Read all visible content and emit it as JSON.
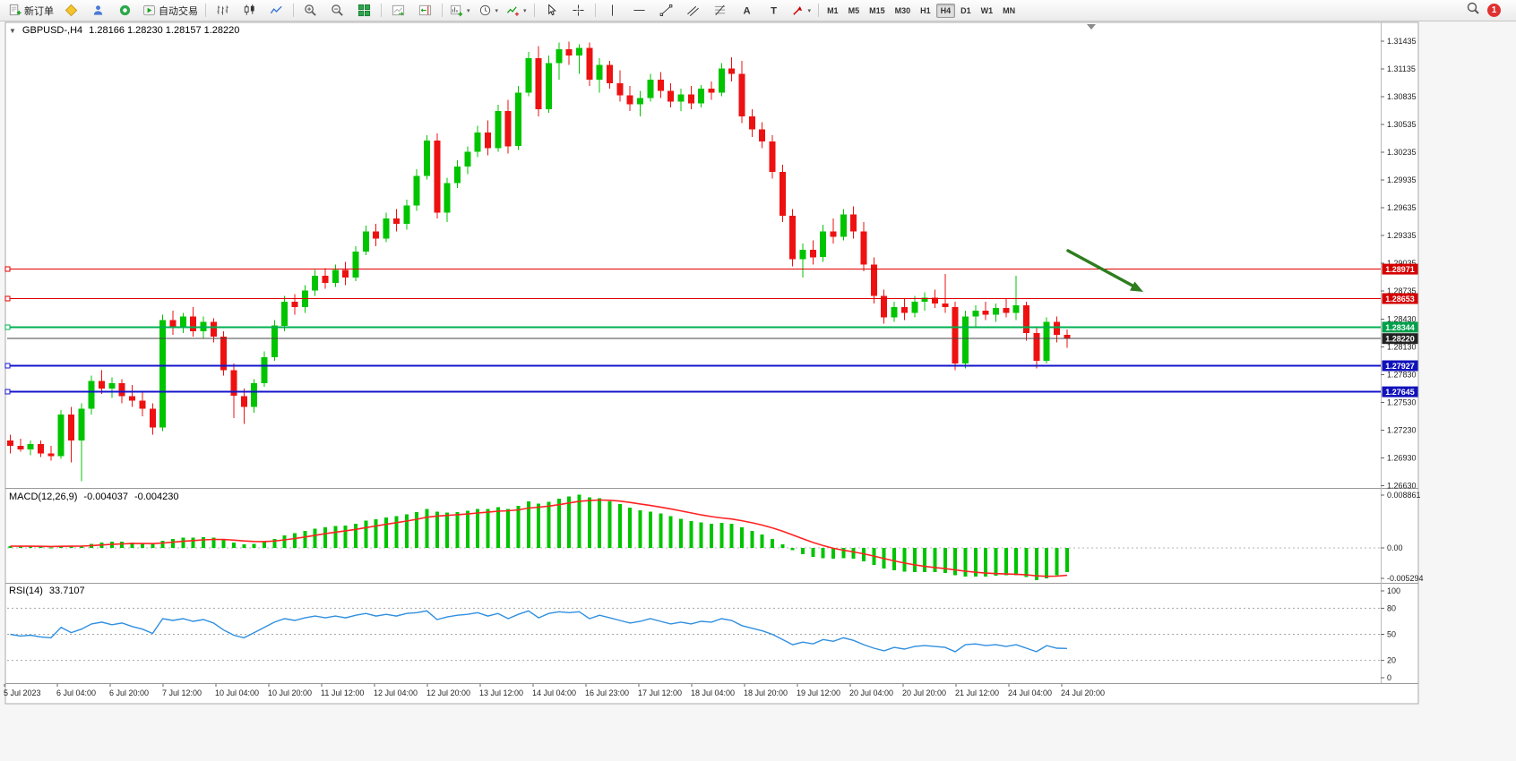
{
  "toolbar": {
    "new_order_label": "新订单",
    "autotrading_label": "自动交易",
    "timeframes": [
      "M1",
      "M5",
      "M15",
      "M30",
      "H1",
      "H4",
      "D1",
      "W1",
      "MN"
    ],
    "active_timeframe": "H4",
    "notification_count": "1"
  },
  "chart_header": {
    "toggle_glyph": "▼",
    "symbol": "GBPUSD-,H4",
    "ohlc": "1.28166 1.28230 1.28157 1.28220"
  },
  "colors": {
    "candle_up": "#00C400",
    "candle_down": "#EE1111",
    "macd_histogram": "#00C400",
    "macd_signal": "#FF2222",
    "rsi_line": "#2F8FE0",
    "arrow": "#2E7D1F",
    "current_price_line": "#444444"
  },
  "chart_data": {
    "type": "candlestick",
    "symbol": "GBPUSD",
    "timeframe": "H4",
    "ohlc_display": {
      "open": "1.28166",
      "high": "1.28230",
      "low": "1.28157",
      "close": "1.28220"
    },
    "price_axis": [
      "1.31435",
      "1.31135",
      "1.30835",
      "1.30535",
      "1.30235",
      "1.29935",
      "1.29635",
      "1.29335",
      "1.29035",
      "1.28735",
      "1.28430",
      "1.28130",
      "1.27830",
      "1.27530",
      "1.27230",
      "1.26930",
      "1.26630"
    ],
    "time_axis": [
      "5 Jul 2023",
      "6 Jul 04:00",
      "6 Jul 20:00",
      "7 Jul 12:00",
      "10 Jul 04:00",
      "10 Jul 20:00",
      "11 Jul 12:00",
      "12 Jul 04:00",
      "12 Jul 20:00",
      "13 Jul 12:00",
      "14 Jul 04:00",
      "16 Jul 23:00",
      "17 Jul 12:00",
      "18 Jul 04:00",
      "18 Jul 20:00",
      "19 Jul 12:00",
      "20 Jul 04:00",
      "20 Jul 20:00",
      "21 Jul 12:00",
      "24 Jul 04:00",
      "24 Jul 20:00"
    ],
    "hlines": [
      {
        "price": 1.28971,
        "label": "1.28971",
        "color": "#E00000",
        "badge_bg": "#D40000",
        "width": 1.2,
        "role": "resistance"
      },
      {
        "price": 1.28653,
        "label": "1.28653",
        "color": "#E00000",
        "badge_bg": "#D40000",
        "width": 1.2,
        "role": "resistance"
      },
      {
        "price": 1.28344,
        "label": "1.28344",
        "color": "#00B050",
        "badge_bg": "#00A04A",
        "width": 2,
        "role": "support"
      },
      {
        "price": 1.27927,
        "label": "1.27927",
        "color": "#1414CC",
        "badge_bg": "#1111BB",
        "width": 2,
        "role": "support"
      },
      {
        "price": 1.27645,
        "label": "1.27645",
        "color": "#1414CC",
        "badge_bg": "#1111BB",
        "width": 2,
        "role": "support"
      }
    ],
    "current_price": {
      "price": 1.2822,
      "label": "1.28220",
      "badge_bg": "#222222"
    },
    "arrow_annotation": {
      "color": "#2E7D1F",
      "direction": "down-right",
      "points_to_price_zone": "1.2865"
    },
    "candles": [
      [
        1.2712,
        1.2718,
        1.2698,
        1.2706
      ],
      [
        1.2706,
        1.2714,
        1.27,
        1.2702
      ],
      [
        1.2702,
        1.2712,
        1.2696,
        1.2708
      ],
      [
        1.2708,
        1.2712,
        1.2694,
        1.2698
      ],
      [
        1.2698,
        1.2706,
        1.269,
        1.2695
      ],
      [
        1.2695,
        1.2745,
        1.2692,
        1.274
      ],
      [
        1.274,
        1.2748,
        1.2688,
        1.2712
      ],
      [
        1.2712,
        1.2752,
        1.2668,
        1.2746
      ],
      [
        1.2746,
        1.2782,
        1.274,
        1.2776
      ],
      [
        1.2776,
        1.2788,
        1.2762,
        1.2768
      ],
      [
        1.2768,
        1.278,
        1.2758,
        1.2774
      ],
      [
        1.2774,
        1.2778,
        1.2752,
        1.276
      ],
      [
        1.276,
        1.2772,
        1.2748,
        1.2755
      ],
      [
        1.2755,
        1.2764,
        1.2738,
        1.2746
      ],
      [
        1.2746,
        1.2752,
        1.2718,
        1.2726
      ],
      [
        1.2726,
        1.2848,
        1.2722,
        1.2842
      ],
      [
        1.2842,
        1.2852,
        1.2826,
        1.2834
      ],
      [
        1.2834,
        1.285,
        1.2828,
        1.2846
      ],
      [
        1.2846,
        1.2856,
        1.2824,
        1.283
      ],
      [
        1.283,
        1.2846,
        1.2822,
        1.284
      ],
      [
        1.284,
        1.2844,
        1.2818,
        1.2824
      ],
      [
        1.2824,
        1.283,
        1.2782,
        1.2788
      ],
      [
        1.2788,
        1.2795,
        1.2736,
        1.276
      ],
      [
        1.276,
        1.2768,
        1.273,
        1.2748
      ],
      [
        1.2748,
        1.2778,
        1.2742,
        1.2774
      ],
      [
        1.2774,
        1.2808,
        1.277,
        1.2802
      ],
      [
        1.2802,
        1.2842,
        1.2798,
        1.2836
      ],
      [
        1.2836,
        1.2868,
        1.283,
        1.2862
      ],
      [
        1.2862,
        1.287,
        1.2848,
        1.2856
      ],
      [
        1.2856,
        1.288,
        1.285,
        1.2874
      ],
      [
        1.2874,
        1.2896,
        1.2868,
        1.289
      ],
      [
        1.289,
        1.2898,
        1.2876,
        1.2882
      ],
      [
        1.2882,
        1.2902,
        1.2878,
        1.2896
      ],
      [
        1.2896,
        1.2905,
        1.288,
        1.2888
      ],
      [
        1.2888,
        1.2922,
        1.2884,
        1.2916
      ],
      [
        1.2916,
        1.2944,
        1.2912,
        1.2938
      ],
      [
        1.2938,
        1.2946,
        1.2922,
        1.293
      ],
      [
        1.293,
        1.2958,
        1.2926,
        1.2952
      ],
      [
        1.2952,
        1.2962,
        1.2938,
        1.2946
      ],
      [
        1.2946,
        1.2972,
        1.294,
        1.2966
      ],
      [
        1.2966,
        1.3005,
        1.296,
        1.2998
      ],
      [
        1.2998,
        1.3042,
        1.2994,
        1.3036
      ],
      [
        1.3036,
        1.3044,
        1.2952,
        1.2958
      ],
      [
        1.2958,
        1.2996,
        1.2948,
        1.299
      ],
      [
        1.299,
        1.3015,
        1.2985,
        1.3008
      ],
      [
        1.3008,
        1.303,
        1.3,
        1.3024
      ],
      [
        1.3024,
        1.3052,
        1.3018,
        1.3045
      ],
      [
        1.3045,
        1.3058,
        1.302,
        1.3028
      ],
      [
        1.3028,
        1.3075,
        1.3024,
        1.3068
      ],
      [
        1.3068,
        1.308,
        1.3022,
        1.303
      ],
      [
        1.303,
        1.3095,
        1.3026,
        1.3088
      ],
      [
        1.3088,
        1.3132,
        1.3084,
        1.3125
      ],
      [
        1.3125,
        1.3138,
        1.3062,
        1.307
      ],
      [
        1.307,
        1.3128,
        1.3066,
        1.312
      ],
      [
        1.312,
        1.3142,
        1.3102,
        1.3135
      ],
      [
        1.3135,
        1.3143,
        1.3118,
        1.3128
      ],
      [
        1.3128,
        1.314,
        1.3108,
        1.3136
      ],
      [
        1.3136,
        1.3142,
        1.3095,
        1.3102
      ],
      [
        1.3102,
        1.3125,
        1.3088,
        1.3118
      ],
      [
        1.3118,
        1.3122,
        1.3092,
        1.3098
      ],
      [
        1.3098,
        1.3112,
        1.3078,
        1.3085
      ],
      [
        1.3085,
        1.3095,
        1.3068,
        1.3075
      ],
      [
        1.3075,
        1.309,
        1.3062,
        1.3082
      ],
      [
        1.3082,
        1.3108,
        1.3078,
        1.3102
      ],
      [
        1.3102,
        1.311,
        1.3082,
        1.309
      ],
      [
        1.309,
        1.3098,
        1.3072,
        1.3078
      ],
      [
        1.3078,
        1.3092,
        1.3068,
        1.3086
      ],
      [
        1.3086,
        1.3095,
        1.307,
        1.3076
      ],
      [
        1.3076,
        1.3096,
        1.3072,
        1.3092
      ],
      [
        1.3092,
        1.31,
        1.308,
        1.3088
      ],
      [
        1.3088,
        1.312,
        1.3084,
        1.3114
      ],
      [
        1.3114,
        1.3126,
        1.31,
        1.3108
      ],
      [
        1.3108,
        1.3122,
        1.3055,
        1.3062
      ],
      [
        1.3062,
        1.307,
        1.304,
        1.3048
      ],
      [
        1.3048,
        1.3056,
        1.3028,
        1.3035
      ],
      [
        1.3035,
        1.3042,
        1.2995,
        1.3002
      ],
      [
        1.3002,
        1.301,
        1.2948,
        1.2955
      ],
      [
        1.2955,
        1.2962,
        1.29,
        1.2908
      ],
      [
        1.2908,
        1.2925,
        1.2888,
        1.2918
      ],
      [
        1.2918,
        1.2928,
        1.2902,
        1.291
      ],
      [
        1.291,
        1.2945,
        1.2905,
        1.2938
      ],
      [
        1.2938,
        1.2952,
        1.2925,
        1.2932
      ],
      [
        1.2932,
        1.2962,
        1.2928,
        1.2956
      ],
      [
        1.2956,
        1.2965,
        1.293,
        1.2938
      ],
      [
        1.2938,
        1.2948,
        1.2895,
        1.2902
      ],
      [
        1.2902,
        1.291,
        1.286,
        1.2868
      ],
      [
        1.2868,
        1.2875,
        1.2838,
        1.2845
      ],
      [
        1.2845,
        1.2862,
        1.284,
        1.2856
      ],
      [
        1.2856,
        1.2865,
        1.2842,
        1.285
      ],
      [
        1.285,
        1.2868,
        1.2845,
        1.2862
      ],
      [
        1.2862,
        1.2872,
        1.2852,
        1.2866
      ],
      [
        1.2866,
        1.2875,
        1.2855,
        1.286
      ],
      [
        1.286,
        1.2892,
        1.285,
        1.2856
      ],
      [
        1.2856,
        1.2862,
        1.2788,
        1.2795
      ],
      [
        1.2795,
        1.2852,
        1.279,
        1.2846
      ],
      [
        1.2846,
        1.2858,
        1.2835,
        1.2852
      ],
      [
        1.2852,
        1.2862,
        1.2842,
        1.2848
      ],
      [
        1.2848,
        1.286,
        1.284,
        1.2855
      ],
      [
        1.2855,
        1.2865,
        1.2845,
        1.285
      ],
      [
        1.285,
        1.289,
        1.2842,
        1.2858
      ],
      [
        1.2858,
        1.2862,
        1.282,
        1.2828
      ],
      [
        1.2828,
        1.2835,
        1.279,
        1.2798
      ],
      [
        1.2798,
        1.2845,
        1.2795,
        1.284
      ],
      [
        1.284,
        1.2846,
        1.2818,
        1.2826
      ],
      [
        1.2826,
        1.2832,
        1.2812,
        1.2822
      ]
    ],
    "macd": {
      "type": "bar+line",
      "name": "MACD(12,26,9)",
      "value_main": "-0.004037",
      "value_signal": "-0.004230",
      "axis": [
        "0.008861",
        "0.00",
        "-0.005294"
      ],
      "signal_period": 9,
      "histogram": [
        0.0003,
        0.0002,
        0.0003,
        0.0002,
        0.0001,
        0.0004,
        0.0003,
        0.0004,
        0.0007,
        0.0009,
        0.001,
        0.001,
        0.0009,
        0.0008,
        0.0006,
        0.0012,
        0.0015,
        0.0017,
        0.0017,
        0.0018,
        0.0017,
        0.0013,
        0.0009,
        0.0006,
        0.0007,
        0.001,
        0.0015,
        0.0021,
        0.0024,
        0.0028,
        0.0032,
        0.0034,
        0.0036,
        0.0037,
        0.004,
        0.0045,
        0.0047,
        0.005,
        0.0052,
        0.0055,
        0.0059,
        0.0064,
        0.006,
        0.0058,
        0.0059,
        0.0061,
        0.0064,
        0.0064,
        0.0067,
        0.0064,
        0.0069,
        0.0077,
        0.0073,
        0.0076,
        0.0081,
        0.0085,
        0.0088,
        0.0083,
        0.0082,
        0.0077,
        0.0072,
        0.0066,
        0.0062,
        0.006,
        0.0057,
        0.0052,
        0.0048,
        0.0044,
        0.0042,
        0.004,
        0.0041,
        0.004,
        0.0034,
        0.0028,
        0.0022,
        0.0015,
        0.0006,
        -0.0004,
        -0.001,
        -0.0015,
        -0.0017,
        -0.0018,
        -0.0017,
        -0.0018,
        -0.0022,
        -0.0028,
        -0.0034,
        -0.0037,
        -0.0039,
        -0.004,
        -0.004,
        -0.004,
        -0.0041,
        -0.0045,
        -0.0047,
        -0.0047,
        -0.0047,
        -0.0046,
        -0.0045,
        -0.0045,
        -0.0048,
        -0.0053,
        -0.005,
        -0.0045,
        -0.004
      ]
    },
    "rsi": {
      "type": "line",
      "name": "RSI(14)",
      "value": "33.7107",
      "axis": [
        "100",
        "80",
        "50",
        "20",
        "0"
      ],
      "levels": [
        80,
        50,
        20
      ],
      "values": [
        50,
        48,
        49,
        47,
        46,
        58,
        52,
        56,
        62,
        64,
        61,
        63,
        59,
        56,
        51,
        68,
        66,
        68,
        65,
        67,
        63,
        55,
        49,
        46,
        52,
        58,
        64,
        68,
        66,
        69,
        71,
        69,
        71,
        69,
        72,
        74,
        71,
        73,
        71,
        74,
        75,
        77,
        67,
        70,
        72,
        73,
        75,
        71,
        74,
        68,
        73,
        77,
        69,
        74,
        76,
        75,
        76,
        68,
        72,
        69,
        66,
        63,
        65,
        68,
        65,
        62,
        64,
        62,
        65,
        64,
        68,
        66,
        60,
        57,
        54,
        50,
        44,
        38,
        41,
        39,
        44,
        42,
        46,
        43,
        38,
        34,
        31,
        35,
        33,
        36,
        37,
        36,
        35,
        30,
        38,
        39,
        37,
        38,
        36,
        38,
        34,
        30,
        37,
        34,
        33.7
      ]
    }
  }
}
